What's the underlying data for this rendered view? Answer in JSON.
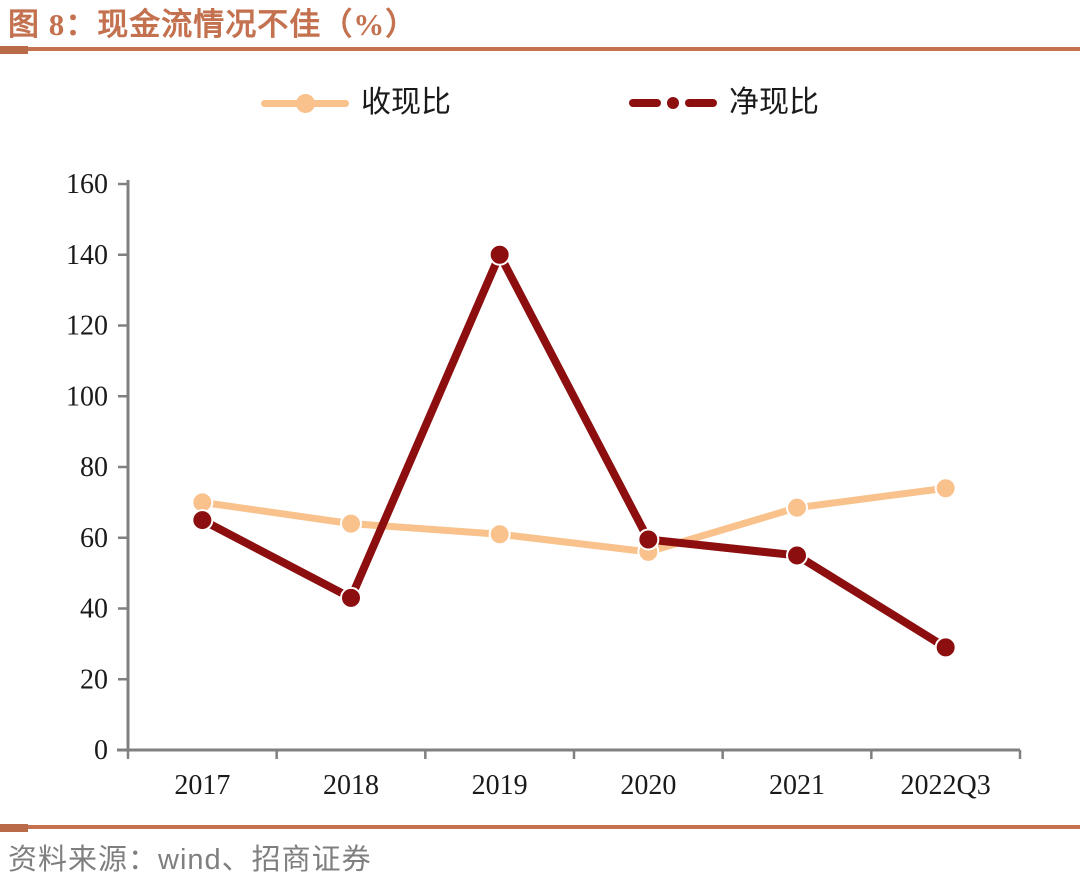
{
  "title": "图 8：现金流情况不佳（%）",
  "source": {
    "prefix": "资料来源：",
    "vendor": "wind",
    "suffix": "、招商证券"
  },
  "colors": {
    "accent": "#C3714E",
    "accent-dark": "#B96A49",
    "axis": "#808080",
    "tick-text": "#1A1A1A",
    "muted": "#7F7F7F"
  },
  "chart_data": {
    "type": "line",
    "title": "图 8：现金流情况不佳（%）",
    "categories": [
      "2017",
      "2018",
      "2019",
      "2020",
      "2021",
      "2022Q3"
    ],
    "series": [
      {
        "name": "收现比",
        "color": "#F9C28C",
        "line_width": 7,
        "marker_radius": 10,
        "values": [
          70,
          64,
          61,
          56,
          68.5,
          74
        ]
      },
      {
        "name": "净现比",
        "color": "#8C0E0E",
        "line_width": 8,
        "marker_radius": 10,
        "values": [
          65,
          43,
          140,
          59.5,
          55,
          29
        ]
      }
    ],
    "xlabel": "",
    "ylabel": "",
    "ylim": [
      0,
      160
    ],
    "ytick_step": 20,
    "grid": false,
    "legend_position": "top"
  }
}
